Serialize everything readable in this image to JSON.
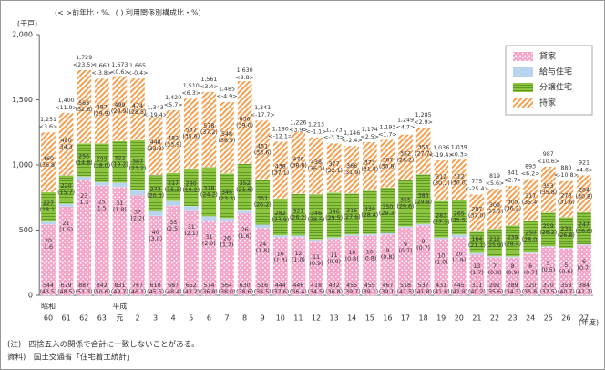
{
  "chart_data": {
    "type": "stacked_bar",
    "subtitle": "(< >前年比・%、( ) 利用関係別構成比・%)",
    "y_unit": "(千戸)",
    "x_unit": "(年度)",
    "eras": [
      {
        "label": "昭和",
        "from": "60"
      },
      {
        "label": "平成",
        "from": "元"
      }
    ],
    "categories": [
      "60",
      "61",
      "62",
      "63",
      "元",
      "2",
      "3",
      "4",
      "5",
      "6",
      "7",
      "8",
      "9",
      "10",
      "11",
      "12",
      "13",
      "14",
      "15",
      "16",
      "17",
      "18",
      "19",
      "20",
      "21",
      "22",
      "23",
      "24",
      "25",
      "26",
      "27"
    ],
    "ylim": [
      0,
      2000
    ],
    "yticks": [
      0,
      500,
      {
        "value": 1000,
        "label": "1,000"
      },
      {
        "value": 1500,
        "label": "1,500"
      },
      {
        "value": 2000,
        "label": "2,000"
      }
    ],
    "series": [
      {
        "name": "貸家",
        "color": "#f4a3c9",
        "values": [
          544,
          679,
          887,
          842,
          831,
          767,
          610,
          687,
          652,
          574,
          564,
          630,
          516,
          444,
          446,
          418,
          432,
          455,
          459,
          467,
          518,
          537,
          431,
          445,
          311,
          291,
          289,
          320,
          370,
          358,
          384
        ],
        "shares": [
          "(43.5)",
          "(48.5)",
          "(51.3)",
          "(50.6)",
          "(49.7)",
          "(46.1)",
          "(45.5)",
          "(48.4)",
          "(43.2)",
          "(36.8)",
          "(38.0)",
          "(38.6)",
          "(38.5)",
          "(37.6)",
          "(36.4)",
          "(34.5)",
          "(36.8)",
          "(39.7)",
          "(39.1)",
          "(39.1)",
          "(41.5)",
          "(41.8)",
          "(41.6)",
          "(42.8)",
          "(40.2)",
          "(35.6)",
          "(34.3)",
          "(35.8)",
          "(37.5)",
          "(40.7)",
          "(41.7)"
        ]
      },
      {
        "name": "給与住宅",
        "color": "#b9d4ef",
        "values": [
          20,
          21,
          23,
          25,
          31,
          37,
          40,
          35,
          31,
          31,
          26,
          26,
          24,
          16,
          12,
          11,
          11,
          10,
          10,
          9,
          9,
          9,
          10,
          20,
          13,
          7,
          8,
          6,
          5,
          5,
          6
        ],
        "shares": [
          "1.6",
          "(1.5)",
          "1.3",
          "1.5",
          "(1.8)",
          "(2.2)",
          "(3.0)",
          "(2.5)",
          "(2.1)",
          "(2.0)",
          "(1.7)",
          "(1.6)",
          "(1.8)",
          "(1.3)",
          "(1.0)",
          "(0.9)",
          "(0.9)",
          "(0.8)",
          "(0.8)",
          "(0.8)",
          "(0.7)",
          "(0.7)",
          "(1.0)",
          "(1.9)",
          "(1.7)",
          "(0.8)",
          "(0.9)",
          "(0.7)",
          "(0.5)",
          "(0.6)",
          "(0.7)"
        ]
      },
      {
        "name": "分譲住宅",
        "color": "#8dc540",
        "values": [
          227,
          220,
          256,
          299,
          322,
          387,
          273,
          217,
          290,
          378,
          346,
          352,
          351,
          282,
          321,
          346,
          346,
          316,
          334,
          350,
          355,
          383,
          283,
          265,
          164,
          212,
          239,
          250,
          259,
          236,
          247
        ],
        "shares": [
          "(18.1)",
          "(15.7)",
          "(14.8)",
          "(18.0)",
          "(19.2)",
          "(23.2)",
          "(20.3)",
          "(15.3)",
          "(19.2)",
          "(24.2)",
          "(23.3)",
          "(21.6)",
          "(26.2)",
          "(23.9)",
          "(26.2)",
          "(28.5)",
          "(29.5)",
          "(27.6)",
          "(28.4)",
          "(29.3)",
          "(29.6)",
          "(29.8)",
          "(27.3)",
          "(25.5)",
          "(21.1)",
          "(25.9)",
          "(28.4)",
          "(28.0)",
          "(26.2)",
          "(26.8)",
          "(26.8)"
        ]
      },
      {
        "name": "持家",
        "color": "#f5a050",
        "values": [
          460,
          480,
          563,
          497,
          499,
          474,
          448,
          482,
          537,
          578,
          548,
          636,
          451,
          438,
          476,
          438,
          377,
          366,
          373,
          367,
          352,
          356,
          312,
          312,
          287,
          309,
          305,
          317,
          353,
          278,
          284
        ],
        "shares": [
          "(36.8)",
          "34.3",
          "(32.6)",
          "(29.9)",
          "(29.9)",
          "(28.5)",
          "(33.3)",
          "(33.9)",
          "(35.6)",
          "(37.2)",
          "(36.9)",
          "(39.0)",
          "(33.6)",
          "(37.1)",
          "(38.8)",
          "(36.1)",
          "(32.1)",
          "(31.9)",
          "(31.8)",
          "(30.8)",
          "(28.2)",
          "(27.7)",
          "(30.1)",
          "(30.0)",
          "(37.0)",
          "(37.7)",
          "(36.2)",
          "(35.4)",
          "(35.8)",
          "(31.6)",
          "(30.8)"
        ]
      }
    ],
    "totals": {
      "values": [
        1251,
        1400,
        1729,
        1663,
        1673,
        1665,
        1343,
        1420,
        1510,
        1561,
        1485,
        1630,
        1341,
        1180,
        1226,
        1213,
        1173,
        1146,
        1174,
        1193,
        1249,
        1285,
        1036,
        1039,
        775,
        819,
        841,
        893,
        987,
        880,
        921
      ],
      "value_labels": [
        "1,251",
        "1,400",
        "1,729",
        "1,663",
        "1,673",
        "1,665",
        "1,343",
        "1,420",
        "1,510",
        "1,561",
        "1,485",
        "1,630",
        "1,341",
        "1,180",
        "1,226",
        "1,213",
        "1,173",
        "1,146",
        "1,174",
        "1,193",
        "1,249",
        "1,285",
        "1,036",
        "1,039",
        "775",
        "819",
        "841",
        "893",
        "987",
        "880",
        "921"
      ],
      "yoy": [
        "<3.6>",
        "<11.9>",
        "<23.5>",
        "<-3.8>",
        "<0.6>",
        "<-0.4>",
        "<-19.4>",
        "<5.7>",
        "<6.3>",
        "<3.4>",
        "<-4.9>",
        "<9.8>",
        "<-17.7>",
        "<-12.1>",
        "<3.9>",
        "<-1.1>",
        "<-3.3>",
        "<-2.4>",
        "<2.5>",
        "<1.7>",
        "<4.7>",
        "<2.9>",
        "<-19.4>",
        "<0.3>",
        "<-25.4>",
        "<5.6>",
        "<2.7>",
        "<6.2>",
        "<10.6>",
        "<-10.8>",
        "<4.6>"
      ]
    },
    "notes": [
      "(注)　四捨五入の関係で合計に一致しないことがある。",
      "資料)　国土交通省「住宅着工統計」"
    ]
  }
}
